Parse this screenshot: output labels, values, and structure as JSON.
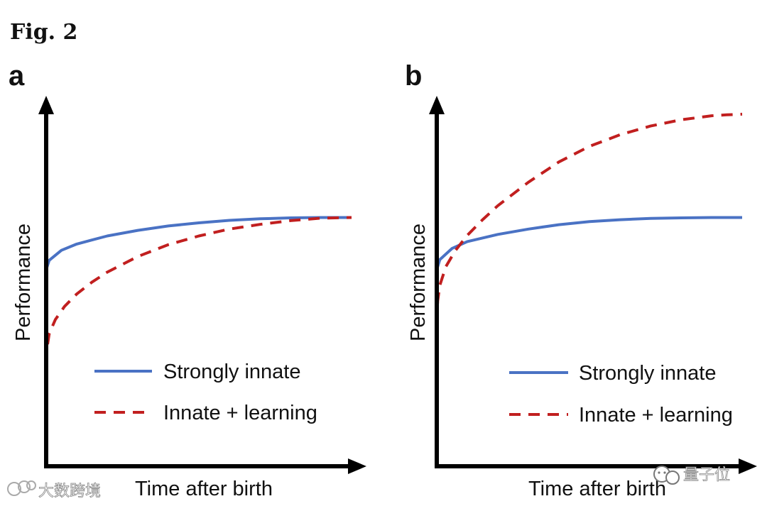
{
  "figure": {
    "title": "Fig. 2"
  },
  "colors": {
    "axis": "#000000",
    "strongly_innate": "#4a72c4",
    "innate_learning": "#c11f1f"
  },
  "chart_data": [
    {
      "type": "line",
      "panel": "a",
      "xlabel": "Time after birth",
      "ylabel": "Performance",
      "xlim": [
        0,
        10
      ],
      "ylim": [
        0,
        10
      ],
      "grid": false,
      "legend_position": "bottom-right",
      "series": [
        {
          "name": "Strongly innate",
          "style": "solid",
          "x": [
            0,
            0.1,
            0.5,
            1,
            2,
            3,
            4,
            5,
            6,
            7,
            8,
            9,
            10
          ],
          "y": [
            5.0,
            5.3,
            5.62,
            5.82,
            6.08,
            6.26,
            6.4,
            6.5,
            6.58,
            6.63,
            6.66,
            6.67,
            6.67
          ]
        },
        {
          "name": "Innate + learning",
          "style": "dashed",
          "x": [
            0,
            0.03,
            0.1,
            0.3,
            0.6,
            1,
            1.5,
            2,
            3,
            4,
            5,
            6,
            7,
            8,
            9,
            10
          ],
          "y": [
            2.0,
            2.5,
            2.95,
            3.4,
            3.82,
            4.22,
            4.6,
            4.92,
            5.42,
            5.8,
            6.08,
            6.3,
            6.45,
            6.57,
            6.65,
            6.67
          ]
        }
      ]
    },
    {
      "type": "line",
      "panel": "b",
      "xlabel": "Time after birth",
      "ylabel": "Performance",
      "xlim": [
        0,
        10
      ],
      "ylim": [
        0,
        10
      ],
      "grid": false,
      "legend_position": "bottom-right",
      "series": [
        {
          "name": "Strongly innate",
          "style": "solid",
          "x": [
            0,
            0.1,
            0.5,
            1,
            2,
            3,
            4,
            5,
            6,
            7,
            8,
            9,
            10
          ],
          "y": [
            5.0,
            5.32,
            5.68,
            5.9,
            6.13,
            6.3,
            6.44,
            6.54,
            6.6,
            6.64,
            6.66,
            6.67,
            6.67
          ]
        },
        {
          "name": "Innate + learning",
          "style": "dashed",
          "x": [
            0,
            0.03,
            0.1,
            0.3,
            0.6,
            1,
            1.5,
            2,
            3,
            4,
            5,
            6,
            7,
            8,
            9,
            9.5,
            10
          ],
          "y": [
            3.3,
            4.0,
            4.5,
            5.1,
            5.6,
            6.1,
            6.6,
            7.05,
            7.8,
            8.45,
            8.95,
            9.32,
            9.6,
            9.8,
            9.93,
            9.96,
            9.98
          ]
        }
      ]
    }
  ],
  "watermarks": [
    {
      "text": "大数跨境",
      "icon": "wechat-bubbles-icon"
    },
    {
      "text": "量子位",
      "icon": "wechat-bubbles-icon"
    }
  ]
}
